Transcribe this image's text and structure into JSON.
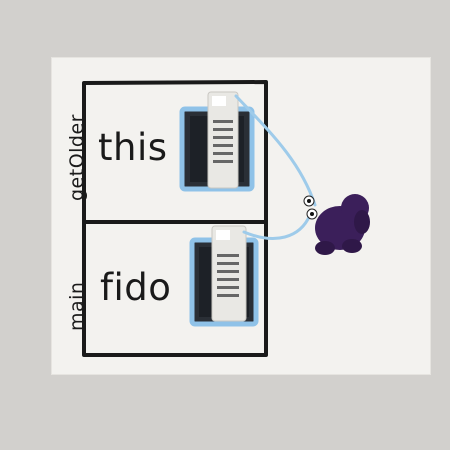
{
  "labels": {
    "frame1_name": "getOlder",
    "frame2_name": "main",
    "var1": "this",
    "var2": "fido"
  },
  "colors": {
    "background": "#d2d0cd",
    "whiteboard": "#f3f2ef",
    "marker": "#1a1a1a",
    "pocket_border": "#8fc2e8",
    "plush": "#3b1f5a",
    "string": "#9ecbea"
  }
}
